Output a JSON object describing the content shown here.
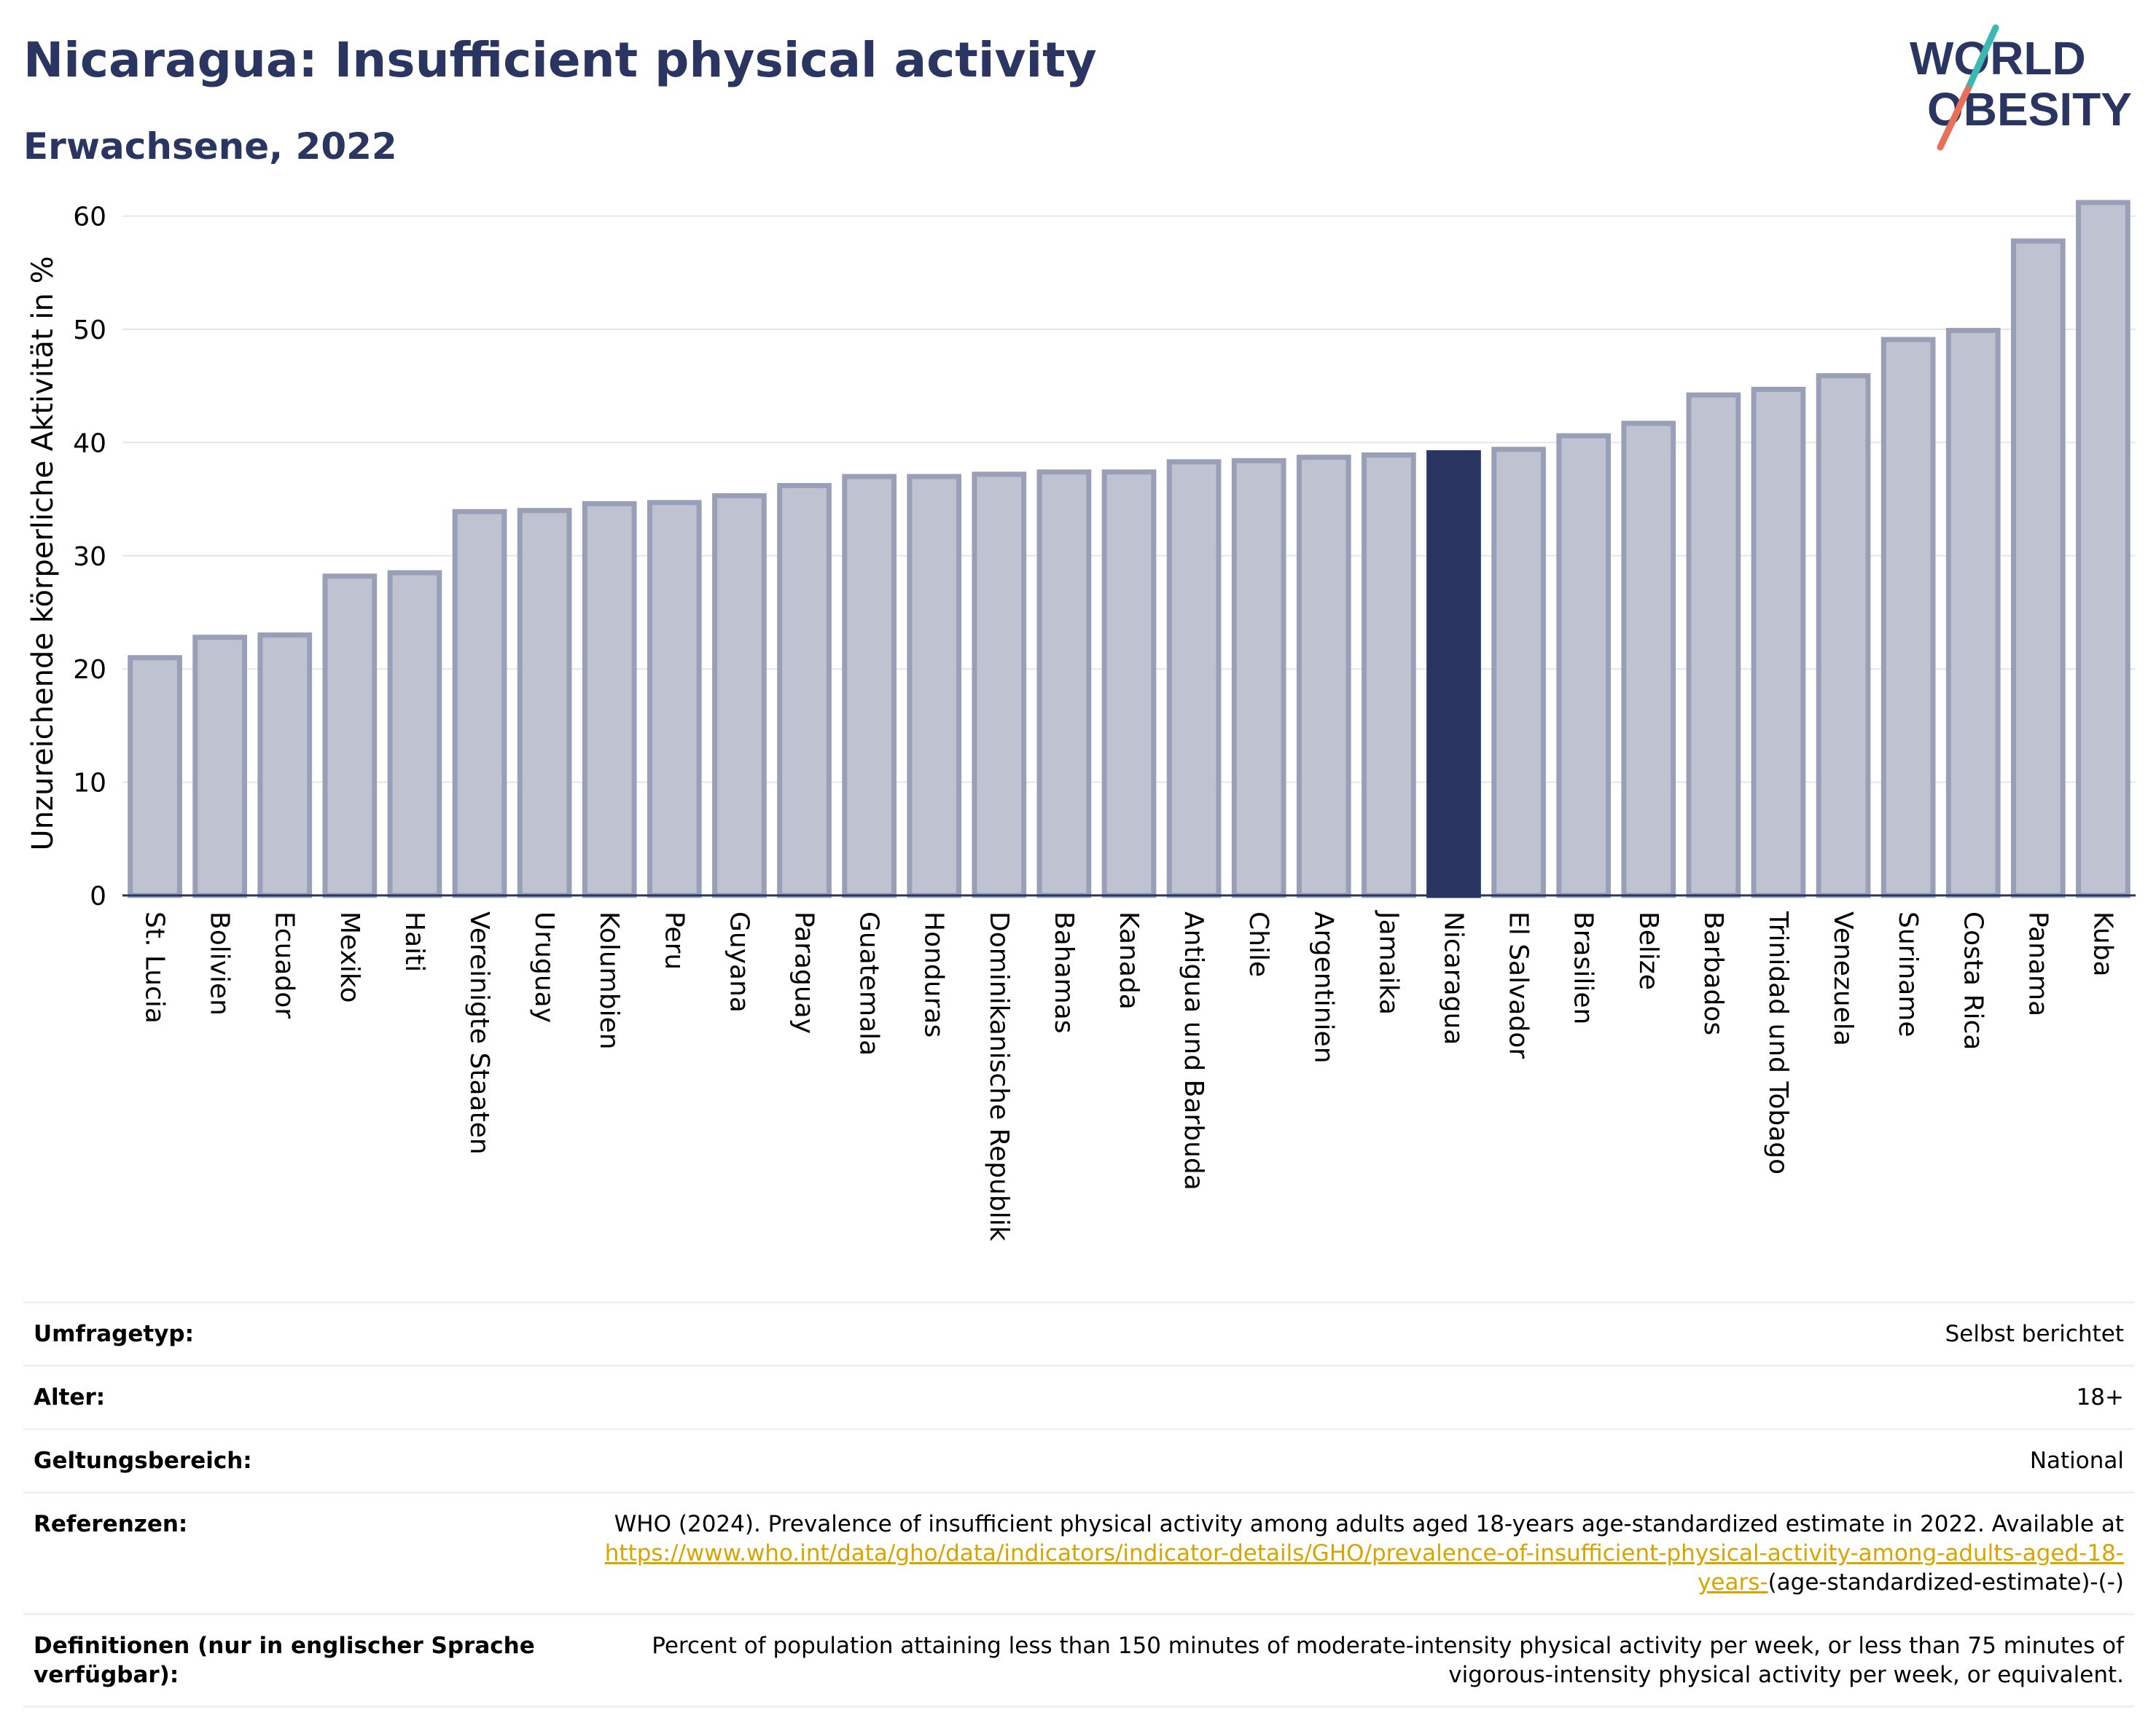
{
  "header": {
    "title": "Nicaragua: Insufficient physical activity",
    "subtitle": "Erwachsene, 2022"
  },
  "logo": {
    "line1": "WORLD",
    "line2": "OBESITY",
    "colors": {
      "text": "#2b3561",
      "slash_teal": "#3bb8b4",
      "slash_coral": "#e8705a"
    }
  },
  "chart_data": {
    "type": "bar",
    "title": "",
    "xlabel": "",
    "ylabel": "Unzureichende körperliche Aktivität in %",
    "ylim": [
      0,
      63
    ],
    "yticks": [
      0,
      10,
      20,
      30,
      40,
      50,
      60
    ],
    "grid": true,
    "highlight": "Nicaragua",
    "colors": {
      "bar": "#bfc2d1",
      "bar_edge": "#9a9fb8",
      "highlight": "#2b3561"
    },
    "categories": [
      "St. Lucia",
      "Bolivien",
      "Ecuador",
      "Mexiko",
      "Haiti",
      "Vereinigte Staaten",
      "Uruguay",
      "Kolumbien",
      "Peru",
      "Guyana",
      "Paraguay",
      "Guatemala",
      "Honduras",
      "Dominikanische Republik",
      "Bahamas",
      "Kanada",
      "Antigua und Barbuda",
      "Chile",
      "Argentinien",
      "Jamaika",
      "Nicaragua",
      "El Salvador",
      "Brasilien",
      "Belize",
      "Barbados",
      "Trinidad und Tobago",
      "Venezuela",
      "Suriname",
      "Costa Rica",
      "Panama",
      "Kuba"
    ],
    "values": [
      21.0,
      22.8,
      23.0,
      28.2,
      28.5,
      33.9,
      34.0,
      34.6,
      34.7,
      35.3,
      36.2,
      37.0,
      37.0,
      37.2,
      37.4,
      37.4,
      38.3,
      38.4,
      38.7,
      38.9,
      39.1,
      39.4,
      40.6,
      41.7,
      44.2,
      44.7,
      45.9,
      49.1,
      49.9,
      57.8,
      61.2
    ]
  },
  "info": {
    "rows": [
      {
        "label": "Umfragetyp:",
        "value": "Selbst berichtet"
      },
      {
        "label": "Alter:",
        "value": "18+"
      },
      {
        "label": "Geltungsbereich:",
        "value": "National"
      }
    ],
    "references": {
      "label": "Referenzen:",
      "text": "WHO (2024). Prevalence of insufficient physical activity among adults aged 18-years age-standardized estimate in 2022. Available at",
      "link": "https://www.who.int/data/gho/data/indicators/indicator-details/GHO/prevalence-of-insufficient-physical-activity-among-adults-aged-18-years-",
      "suffix": "(age-standardized-estimate)-(-)"
    },
    "definitions": {
      "label": "Definitionen (nur in englischer Sprache verfügbar):",
      "value": "Percent of population attaining less than 150 minutes of moderate-intensity physical activity per week, or less than 75 minutes of vigorous-intensity physical activity per week, or equivalent."
    }
  }
}
